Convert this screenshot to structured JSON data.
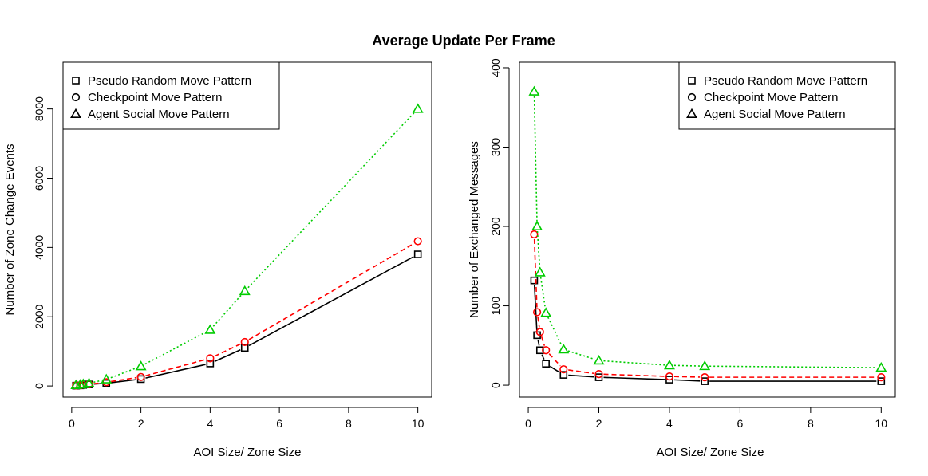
{
  "figure": {
    "title": "Average Update Per Frame"
  },
  "chart_data": [
    {
      "type": "line",
      "xlabel": "AOI Size/ Zone Size",
      "ylabel": "Number of Zone Change Events",
      "xlim": [
        -0.25,
        10.4
      ],
      "ylim": [
        -320,
        9350
      ],
      "xticks": [
        0,
        2,
        4,
        6,
        8,
        10
      ],
      "yticks": [
        0,
        2000,
        4000,
        6000,
        8000
      ],
      "legend_position": "top-left",
      "series": [
        {
          "name": "Pseudo Random Move Pattern",
          "marker": "square",
          "dash": "solid",
          "color": "#000000",
          "x": [
            0.125,
            0.25,
            0.333,
            0.5,
            1,
            2,
            4,
            5,
            10
          ],
          "y": [
            10,
            18,
            30,
            45,
            80,
            200,
            650,
            1100,
            3800
          ]
        },
        {
          "name": "Checkpoint Move Pattern",
          "marker": "circle",
          "dash": "dashed",
          "color": "#ff0000",
          "x": [
            0.125,
            0.25,
            0.333,
            0.5,
            1,
            2,
            4,
            5,
            10
          ],
          "y": [
            15,
            22,
            35,
            50,
            110,
            260,
            800,
            1270,
            4180
          ]
        },
        {
          "name": "Agent Social Move Pattern",
          "marker": "triangle",
          "dash": "dotted",
          "color": "#00cc00",
          "x": [
            0.125,
            0.25,
            0.333,
            0.5,
            1,
            2,
            4,
            5,
            10
          ],
          "y": [
            25,
            40,
            55,
            80,
            190,
            570,
            1620,
            2740,
            8000
          ]
        }
      ]
    },
    {
      "type": "line",
      "xlabel": "AOI Size/ Zone Size",
      "ylabel": "Number of Exchanged Messages",
      "xlim": [
        -0.25,
        10.4
      ],
      "ylim": [
        -15,
        407
      ],
      "xticks": [
        0,
        2,
        4,
        6,
        8,
        10
      ],
      "yticks": [
        0,
        100,
        200,
        300,
        400
      ],
      "legend_position": "top-right",
      "series": [
        {
          "name": "Pseudo Random Move Pattern",
          "marker": "square",
          "dash": "solid",
          "color": "#000000",
          "x": [
            0.167,
            0.25,
            0.333,
            0.5,
            1,
            2,
            4,
            5,
            10
          ],
          "y": [
            132,
            63,
            44,
            27,
            13,
            10,
            7,
            5,
            5
          ]
        },
        {
          "name": "Checkpoint Move Pattern",
          "marker": "circle",
          "dash": "dashed",
          "color": "#ff0000",
          "x": [
            0.167,
            0.25,
            0.333,
            0.5,
            1,
            2,
            4,
            5,
            10
          ],
          "y": [
            190,
            92,
            67,
            44,
            20,
            14,
            11,
            10,
            10
          ]
        },
        {
          "name": "Agent Social Move Pattern",
          "marker": "triangle",
          "dash": "dotted",
          "color": "#00cc00",
          "x": [
            0.167,
            0.25,
            0.333,
            0.5,
            1,
            2,
            4,
            5,
            10
          ],
          "y": [
            370,
            200,
            142,
            91,
            45,
            31,
            25,
            24,
            22
          ]
        }
      ]
    }
  ]
}
